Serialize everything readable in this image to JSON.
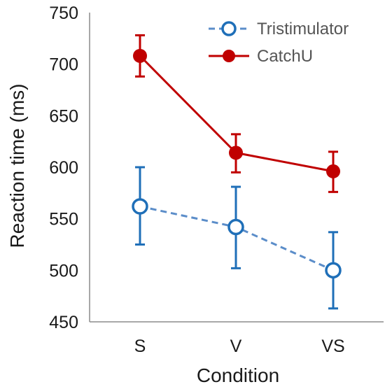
{
  "chart_data": {
    "type": "line",
    "xlabel": "Condition",
    "ylabel": "Reaction time (ms)",
    "categories": [
      "S",
      "V",
      "VS"
    ],
    "ylim": [
      450,
      750
    ],
    "yticks": [
      450,
      500,
      550,
      600,
      650,
      700,
      750
    ],
    "grid": false,
    "legend_position": "top-right",
    "series": [
      {
        "name": "Tristimulator",
        "values": [
          562,
          542,
          500
        ],
        "error_low": [
          525,
          502,
          463
        ],
        "error_high": [
          600,
          581,
          537
        ],
        "line_color": "#5b8dc9",
        "marker_color": "#1f6fb8",
        "line_style": "dashed",
        "marker": "open-circle"
      },
      {
        "name": "CatchU",
        "values": [
          708,
          614,
          596
        ],
        "error_low": [
          688,
          595,
          576
        ],
        "error_high": [
          728,
          632,
          615
        ],
        "line_color": "#c00000",
        "marker_color": "#c00000",
        "line_style": "solid",
        "marker": "filled-circle"
      }
    ]
  }
}
